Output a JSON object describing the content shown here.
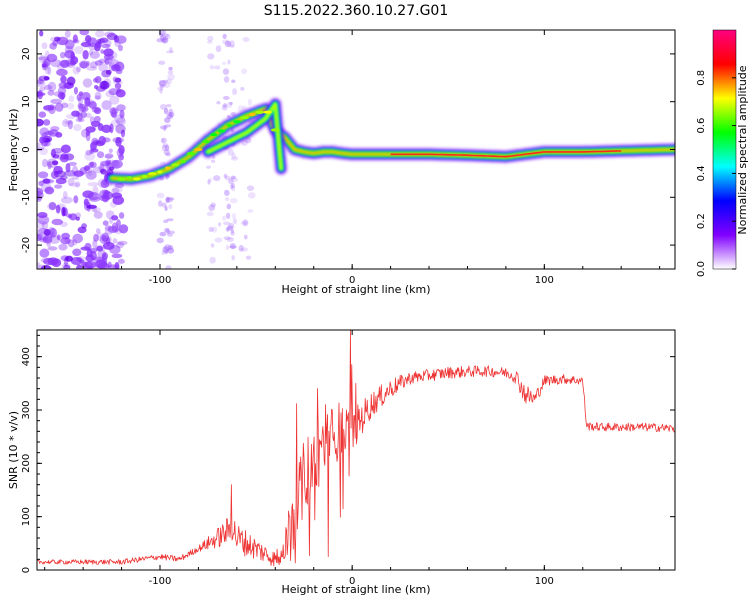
{
  "title": "S115.2022.360.10.27.G01",
  "chart_data": [
    {
      "type": "heatmap",
      "xlabel": "Height of straight line (km)",
      "ylabel": "Frequency (Hz)",
      "xlim": [
        -164,
        168
      ],
      "ylim": [
        -25,
        25
      ],
      "xticks": [
        -100,
        0,
        100
      ],
      "yticks": [
        -20,
        -10,
        0,
        10,
        20
      ],
      "colorbar": {
        "label": "Normalized spectral amplitude",
        "range": [
          0,
          1
        ],
        "ticks": [
          "0.0",
          "0.2",
          "0.4",
          "0.6",
          "0.8"
        ],
        "colors": [
          "#ffffff",
          "#8000ff",
          "#0000ff",
          "#00ffff",
          "#00ff00",
          "#ffff00",
          "#ff0000",
          "#ff0080"
        ]
      },
      "ridge": {
        "x": [
          -125,
          -115,
          -105,
          -95,
          -85,
          -75,
          -65,
          -55,
          -45,
          -40,
          -35,
          -30,
          -25,
          -20,
          -15,
          -10,
          -5,
          0,
          20,
          40,
          60,
          80,
          100,
          120,
          140,
          168
        ],
        "y": [
          -6,
          -6.2,
          -5.5,
          -4,
          -1.5,
          2,
          5,
          7,
          8.5,
          4,
          2.5,
          0,
          -0.5,
          -0.8,
          -0.5,
          -0.5,
          -0.8,
          -1,
          -1,
          -1,
          -1.2,
          -1.5,
          -0.5,
          -0.5,
          -0.3,
          0
        ]
      },
      "secondary_ridge": {
        "x": [
          -75,
          -65,
          -55,
          -45,
          -40,
          -37
        ],
        "y": [
          -0.5,
          1.5,
          3.5,
          6.5,
          9.5,
          -4
        ]
      }
    },
    {
      "type": "line",
      "xlabel": "Height of straight line (km)",
      "ylabel": "SNR (10 * v/v)",
      "xlim": [
        -164,
        168
      ],
      "ylim": [
        0,
        450
      ],
      "xticks": [
        -100,
        0,
        100
      ],
      "yticks": [
        0,
        100,
        200,
        300,
        400
      ],
      "color": "#ee3333",
      "envelope": {
        "x": [
          -164,
          -120,
          -100,
          -90,
          -80,
          -70,
          -62,
          -60,
          -50,
          -40,
          -35,
          -30,
          -25,
          -20,
          -15,
          -10,
          -5,
          0,
          10,
          20,
          30,
          40,
          50,
          60,
          70,
          80,
          85,
          90,
          95,
          100,
          110,
          120,
          122,
          130,
          140,
          150,
          160,
          168
        ],
        "y": [
          15,
          15,
          25,
          20,
          40,
          60,
          80,
          60,
          40,
          20,
          50,
          120,
          180,
          200,
          230,
          250,
          270,
          260,
          310,
          340,
          360,
          365,
          370,
          372,
          373,
          370,
          365,
          330,
          320,
          355,
          358,
          355,
          270,
          268,
          268,
          268,
          267,
          265
        ]
      },
      "noise": {
        "x": [
          -164,
          -80,
          -62,
          -40,
          -36,
          -30,
          -20,
          -10,
          0,
          10,
          30,
          80,
          90,
          100,
          122,
          168
        ],
        "y": [
          4,
          6,
          30,
          15,
          30,
          60,
          70,
          60,
          40,
          25,
          12,
          10,
          20,
          10,
          8,
          8
        ]
      },
      "spikes": [
        {
          "x": -63,
          "y": 160
        },
        {
          "x": -29,
          "y": 312
        },
        {
          "x": -18,
          "y": 340
        },
        {
          "x": -14,
          "y": 310
        },
        {
          "x": -3,
          "y": 300
        },
        {
          "x": -1,
          "y": 450
        },
        {
          "x": 2,
          "y": 350
        }
      ]
    }
  ]
}
